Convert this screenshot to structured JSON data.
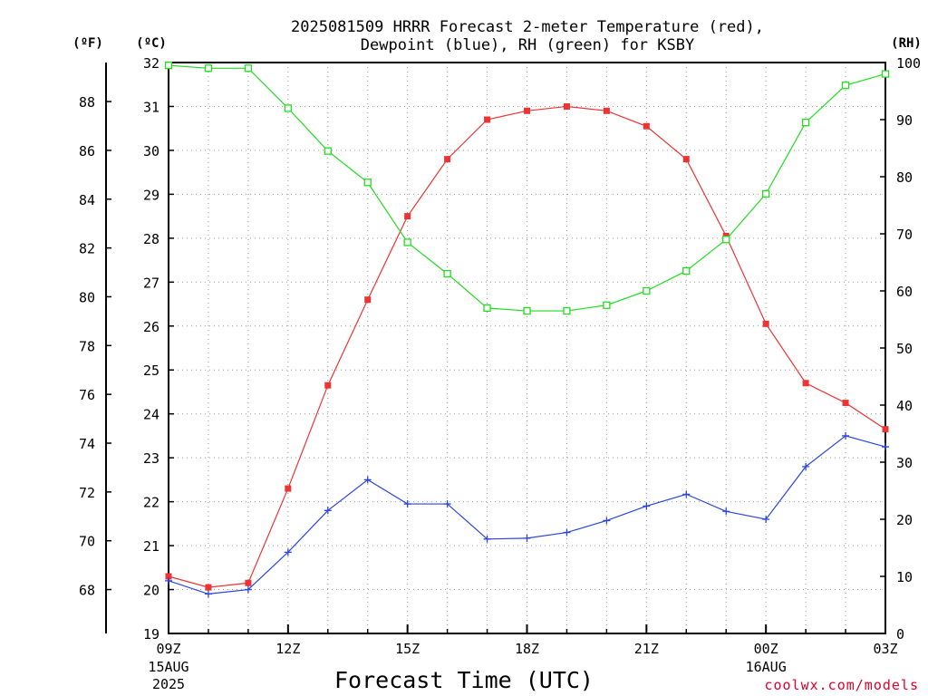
{
  "chart_data": {
    "type": "line",
    "title": "2025081509 HRRR Forecast 2-meter Temperature (red),",
    "subtitle": "Dewpoint (blue), RH (green) for KSBY",
    "xlabel": "Forecast Time (UTC)",
    "credit": "coolwx.com/models",
    "units": {
      "fahrenheit": "(ºF)",
      "celsius": "(ºC)",
      "rh": "(RH)"
    },
    "x": [
      "09Z",
      "10Z",
      "11Z",
      "12Z",
      "13Z",
      "14Z",
      "15Z",
      "16Z",
      "17Z",
      "18Z",
      "19Z",
      "20Z",
      "21Z",
      "22Z",
      "23Z",
      "00Z",
      "01Z",
      "02Z",
      "03Z"
    ],
    "x_ticks": [
      {
        "label": "09Z",
        "index": 0,
        "sub1": "15AUG",
        "sub2": "2025"
      },
      {
        "label": "12Z",
        "index": 3
      },
      {
        "label": "15Z",
        "index": 6
      },
      {
        "label": "18Z",
        "index": 9
      },
      {
        "label": "21Z",
        "index": 12
      },
      {
        "label": "00Z",
        "index": 15,
        "sub1": "16AUG"
      },
      {
        "label": "03Z",
        "index": 18
      }
    ],
    "ylim_celsius": [
      19,
      32
    ],
    "yticks_celsius": [
      "19",
      "20",
      "21",
      "22",
      "23",
      "24",
      "25",
      "26",
      "27",
      "28",
      "29",
      "30",
      "31",
      "32"
    ],
    "yticks_fahrenheit": [
      "68",
      "70",
      "72",
      "74",
      "76",
      "78",
      "80",
      "82",
      "84",
      "86",
      "88"
    ],
    "ylim_rh": [
      0,
      100
    ],
    "yticks_rh": [
      "0",
      "10",
      "20",
      "30",
      "40",
      "50",
      "60",
      "70",
      "80",
      "90",
      "100"
    ],
    "grid": true,
    "series": [
      {
        "name": "Temperature",
        "color": "#ee3333",
        "marker": "filled-square",
        "values": [
          20.3,
          20.05,
          20.15,
          22.3,
          24.65,
          26.6,
          28.5,
          29.8,
          30.7,
          30.9,
          31.0,
          30.9,
          30.55,
          29.8,
          28.05,
          26.05,
          24.7,
          24.25,
          23.65
        ]
      },
      {
        "name": "Dewpoint",
        "color": "#2b45e0",
        "marker": "plus",
        "values": [
          20.2,
          19.9,
          20.0,
          20.85,
          21.8,
          22.5,
          21.95,
          21.95,
          21.15,
          21.17,
          21.3,
          21.57,
          21.9,
          22.17,
          21.78,
          21.6,
          22.8,
          23.5,
          23.25
        ]
      },
      {
        "name": "RH",
        "color": "#22dd22",
        "marker": "open-square",
        "values": [
          99.5,
          99.0,
          99.0,
          92.0,
          84.5,
          79.0,
          68.5,
          63.0,
          57.0,
          56.5,
          56.5,
          57.5,
          60.0,
          63.5,
          69.0,
          77.0,
          89.5,
          96.0,
          98.0
        ]
      }
    ]
  }
}
